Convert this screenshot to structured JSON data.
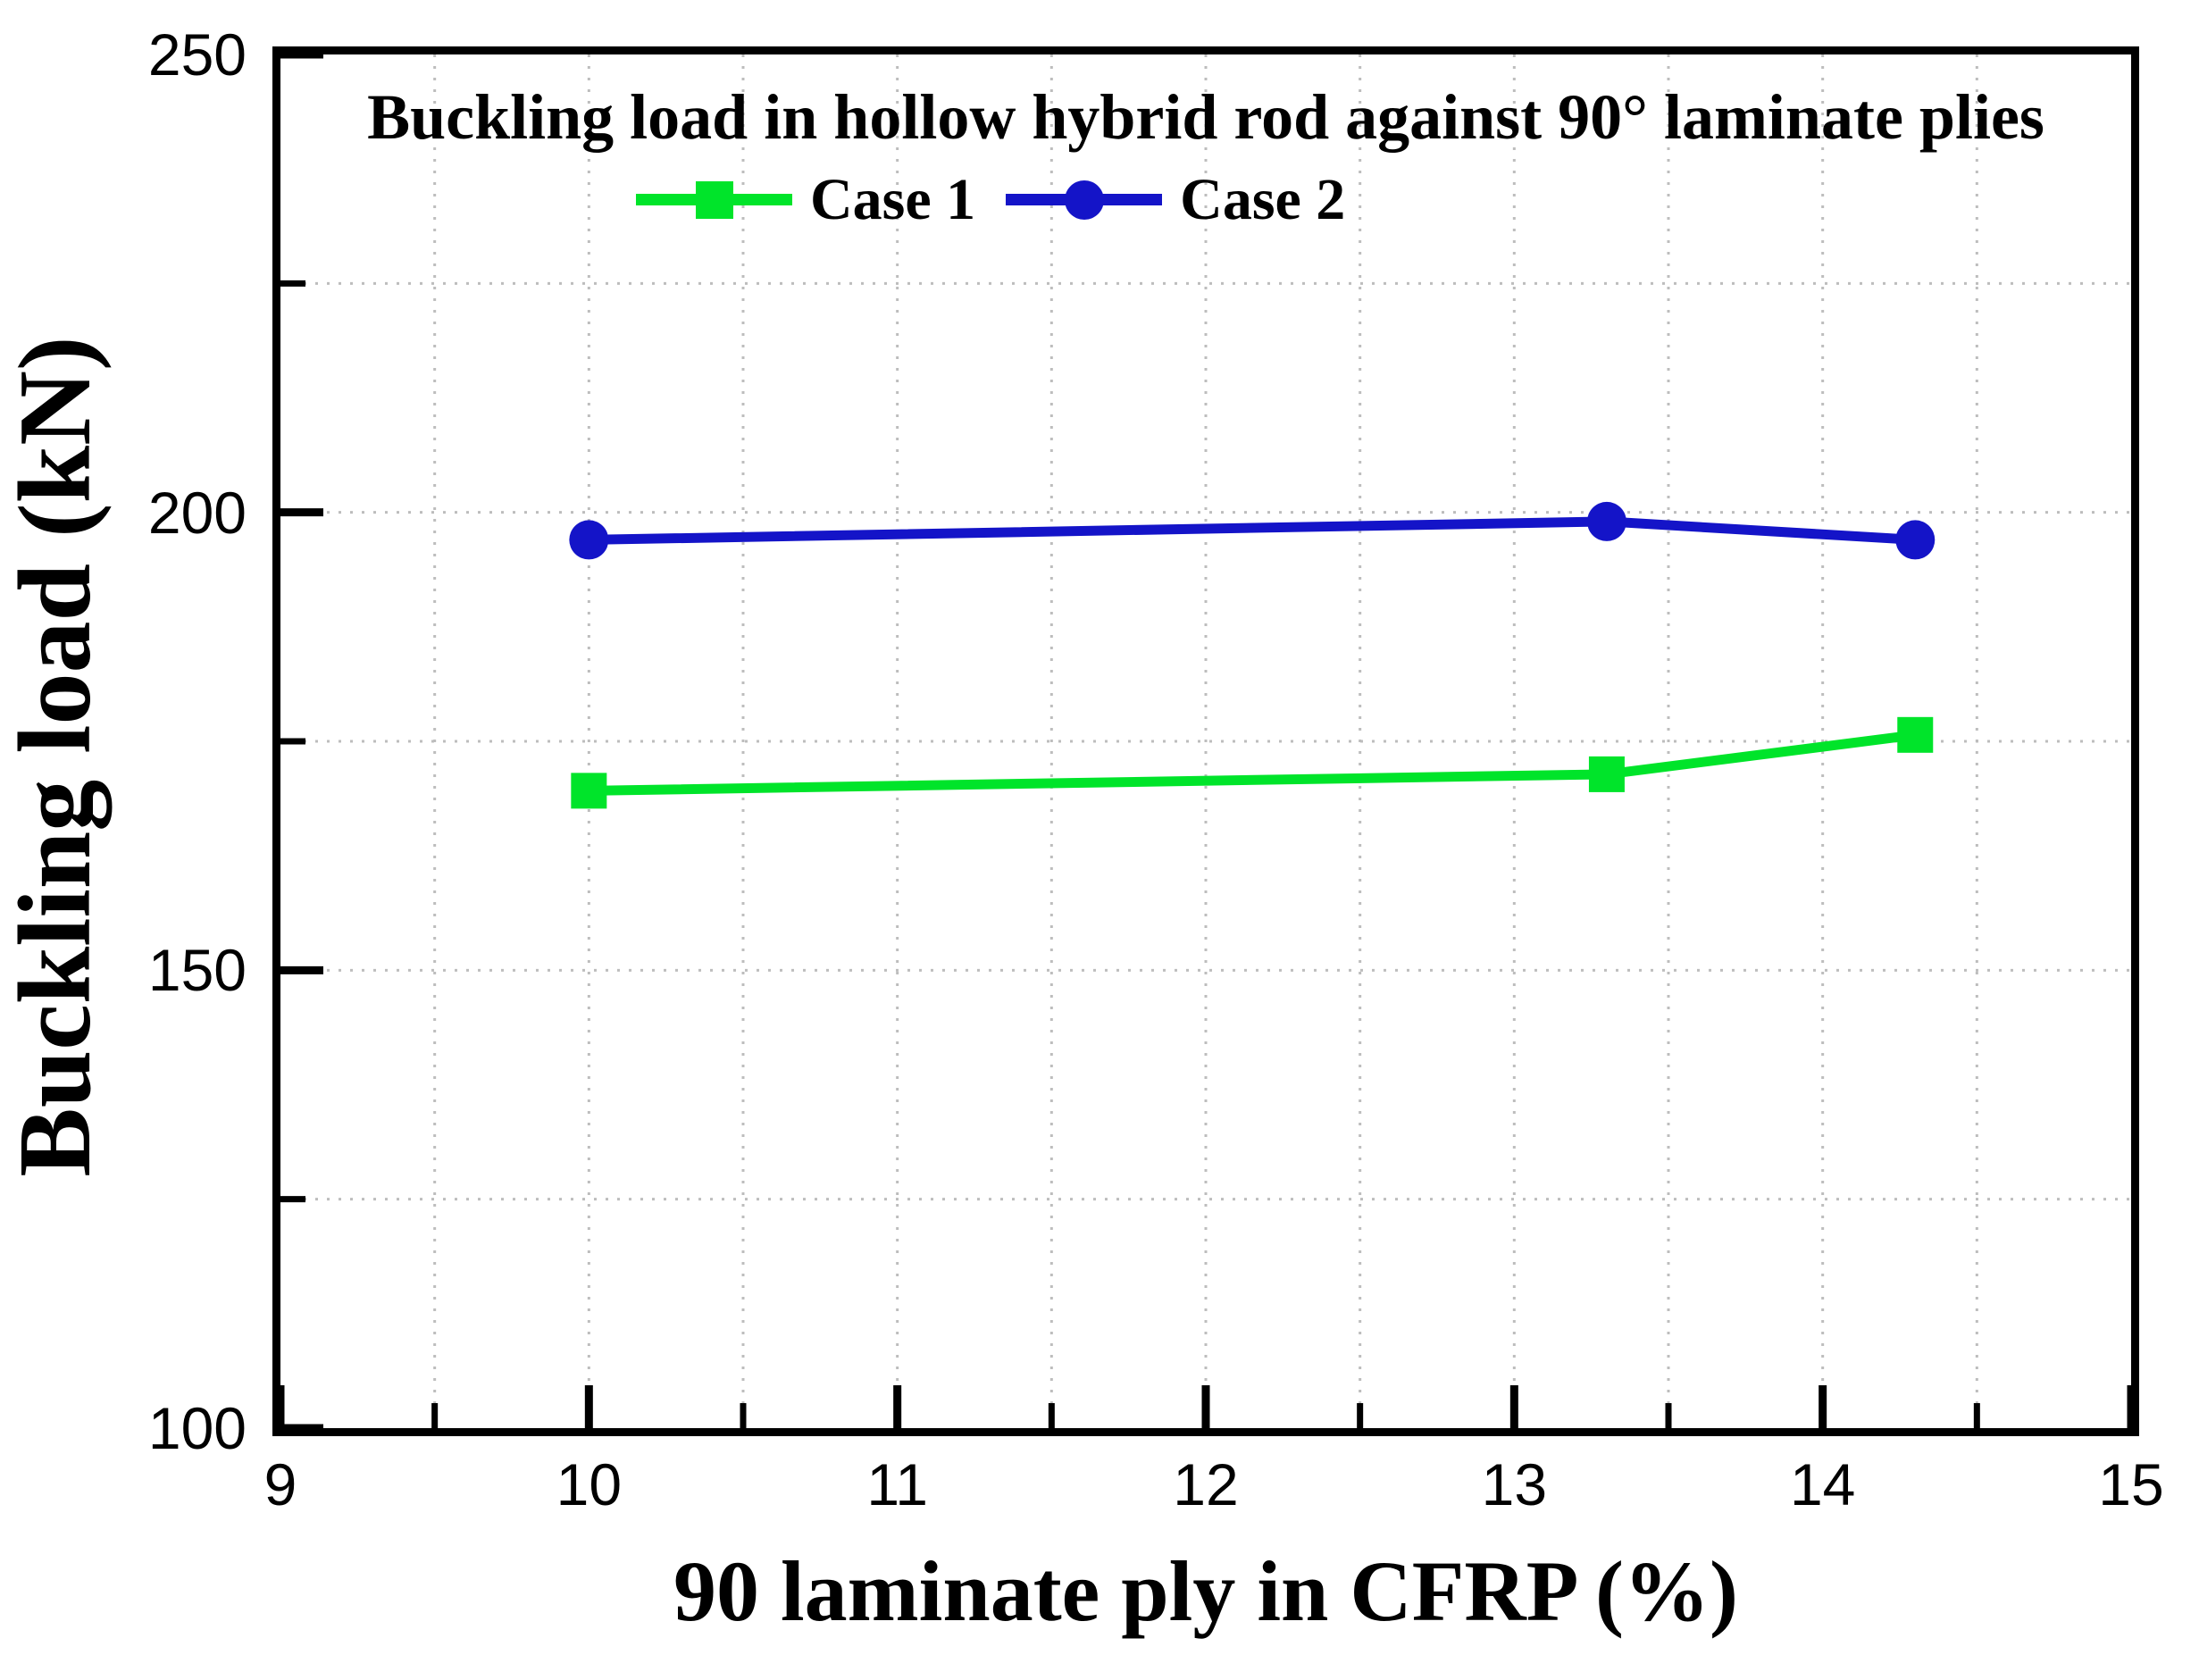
{
  "colors": {
    "background": "#ffffff",
    "axis": "#000000",
    "grid": "#bdbdbd",
    "text": "#000000",
    "case1_green": "#00E42A",
    "case2_blue": "#1414C8"
  },
  "chart_data": {
    "type": "line",
    "title": "Buckling load in hollow hybrid rod against 90° laminate plies",
    "xlabel": "90 laminate ply in CFRP (%)",
    "ylabel": "Buckling load (kN)",
    "xlim": [
      9,
      15
    ],
    "ylim": [
      100,
      250
    ],
    "x_major_ticks": [
      9,
      10,
      11,
      12,
      13,
      14,
      15
    ],
    "y_major_ticks": [
      100,
      150,
      200,
      250
    ],
    "x_minor_tick_step": 0.5,
    "y_minor_tick_step": 25,
    "grid": {
      "visible": true,
      "style": "dotted",
      "color": "#bdbdbd",
      "x_interval": 0.5,
      "y_interval": 25
    },
    "legend": {
      "position": "top-center-below-title",
      "entries": [
        "Case 1",
        "Case 2"
      ]
    },
    "series": [
      {
        "name": "Case 1",
        "color": "#00E42A",
        "marker": "square",
        "x": [
          10,
          13.3,
          14.3
        ],
        "y": [
          169.6,
          171.4,
          175.7
        ]
      },
      {
        "name": "Case 2",
        "color": "#1414C8",
        "marker": "circle",
        "x": [
          10,
          13.3,
          14.3
        ],
        "y": [
          197,
          199,
          197
        ]
      }
    ]
  }
}
